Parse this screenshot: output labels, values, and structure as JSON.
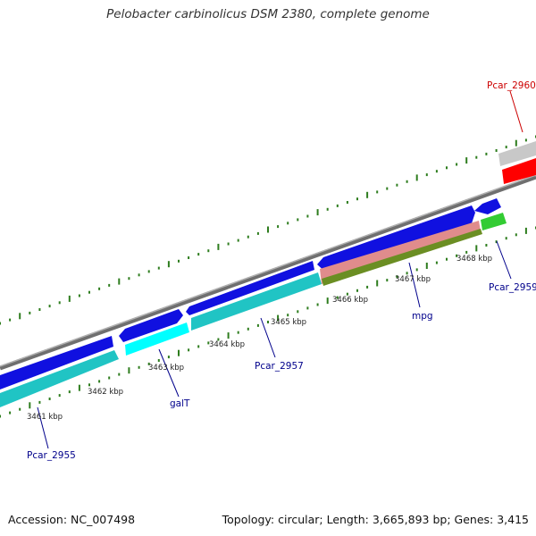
{
  "title": "Pelobacter carbinolicus DSM 2380, complete genome",
  "footer": {
    "accession": "Accession: NC_007498",
    "summary": "Topology: circular; Length: 3,665,893 bp; Genes: 3,415"
  },
  "colors": {
    "backbone": "#888888",
    "tick": "#2e7d1e",
    "forward_cds": "#1010e0",
    "reverse_cds": "#1fc8c8",
    "highlight_cyan": "#00ffff",
    "salmon": "#e08c8c",
    "olive": "#6b8e23",
    "green": "#33cc33",
    "red": "#ff0000",
    "grey": "#c0c0c0",
    "label_blue": "#00008b",
    "label_red": "#cc0000"
  },
  "scale_labels": [
    {
      "text": "3461 kbp"
    },
    {
      "text": "3462 kbp"
    },
    {
      "text": "3463 kbp"
    },
    {
      "text": "3464 kbp"
    },
    {
      "text": "3465 kbp"
    },
    {
      "text": "3466 kbp"
    },
    {
      "text": "3467 kbp"
    },
    {
      "text": "3468 kbp"
    }
  ],
  "gene_labels": [
    {
      "text": "Pcar_2955",
      "color": "#00008b"
    },
    {
      "text": "galT",
      "color": "#00008b"
    },
    {
      "text": "Pcar_2957",
      "color": "#00008b"
    },
    {
      "text": "mpg",
      "color": "#00008b"
    },
    {
      "text": "Pcar_2959",
      "color": "#00008b"
    },
    {
      "text": "Pcar_2960",
      "color": "#cc0000"
    }
  ]
}
